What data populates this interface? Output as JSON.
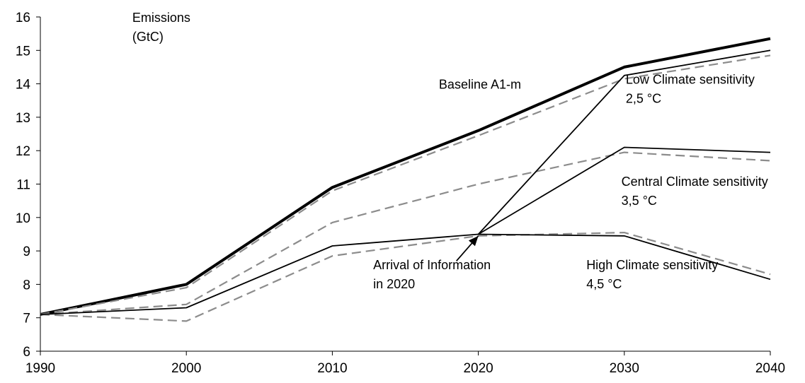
{
  "chart_data": {
    "type": "line",
    "x": [
      1990,
      2000,
      2010,
      2020,
      2030,
      2040
    ],
    "xlim": [
      1990,
      2040
    ],
    "ylim": [
      6,
      16
    ],
    "y_ticks": [
      6,
      7,
      8,
      9,
      10,
      11,
      12,
      13,
      14,
      15,
      16
    ],
    "x_ticks": [
      1990,
      2000,
      2010,
      2020,
      2030,
      2040
    ],
    "grid": false,
    "legend": "none",
    "series": [
      {
        "style": "solid-thick",
        "x": [
          1990,
          2000,
          2010,
          2020,
          2030,
          2040
        ],
        "values": [
          7.1,
          8.0,
          10.9,
          12.6,
          14.5,
          15.35
        ]
      },
      {
        "style": "dashed",
        "x": [
          1990,
          2000,
          2010,
          2020,
          2030,
          2040
        ],
        "values": [
          7.1,
          7.9,
          10.8,
          12.45,
          14.15,
          14.85
        ]
      },
      {
        "style": "dashed",
        "x": [
          1990,
          2000,
          2010,
          2020,
          2030,
          2040
        ],
        "values": [
          7.1,
          7.4,
          9.85,
          11.0,
          11.95,
          11.7
        ]
      },
      {
        "style": "dashed",
        "x": [
          1990,
          2000,
          2010,
          2020,
          2030,
          2040
        ],
        "values": [
          7.1,
          6.9,
          8.85,
          9.45,
          9.55,
          8.3
        ]
      },
      {
        "style": "solid",
        "x": [
          1990,
          2000,
          2010,
          2020,
          2030,
          2040
        ],
        "values": [
          7.1,
          7.3,
          9.15,
          9.5,
          9.45,
          8.15
        ]
      },
      {
        "style": "solid",
        "x": [
          2020,
          2030,
          2040
        ],
        "values": [
          9.5,
          14.25,
          15.0
        ]
      },
      {
        "style": "solid",
        "x": [
          2020,
          2030,
          2040
        ],
        "values": [
          9.5,
          12.1,
          11.95
        ]
      }
    ],
    "annotations": [
      {
        "lines": [
          "Emissions",
          "(GtC)"
        ],
        "x": 1996.3,
        "y": 15.85
      },
      {
        "lines": [
          "Baseline A1-m"
        ],
        "x": 2017.3,
        "y": 13.85
      },
      {
        "lines": [
          "Low Climate sensitivity",
          "2,5 °C"
        ],
        "x": 2030.1,
        "y": 14.0
      },
      {
        "lines": [
          "Central Climate sensitivity",
          "3,5 °C"
        ],
        "x": 2029.8,
        "y": 10.95
      },
      {
        "lines": [
          "Arrival of Information",
          "in 2020"
        ],
        "x": 2012.8,
        "y": 8.45
      },
      {
        "lines": [
          "High Climate sensitivity",
          "4,5 °C"
        ],
        "x": 2027.4,
        "y": 8.45
      }
    ],
    "arrow": {
      "from": [
        2018.5,
        8.7
      ],
      "to": [
        2020,
        9.45
      ]
    }
  },
  "colors": {
    "solid": "#000000",
    "dashed": "#8c8c8c"
  }
}
